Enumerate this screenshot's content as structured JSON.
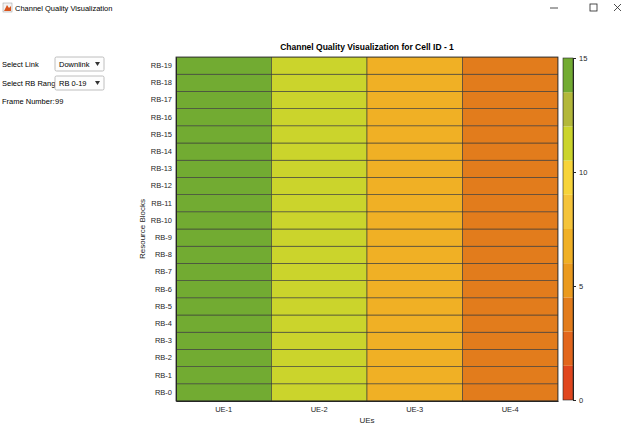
{
  "window": {
    "title": "Channel Quality Visualization"
  },
  "controls": [
    {
      "label": "Select Link",
      "value": "Downlink"
    },
    {
      "label": "Select RB Range",
      "value": "RB 0-19"
    }
  ],
  "frame": {
    "label": "Frame Number:",
    "value": 99
  },
  "chart_data": {
    "type": "heatmap",
    "title": "Channel Quality Visualization for Cell ID - 1",
    "x_label": "UEs",
    "y_label": "Resource Blocks",
    "categories": [
      "UE-1",
      "UE-2",
      "UE-3",
      "UE-4"
    ],
    "y_categories": [
      "RB-0",
      "RB-1",
      "RB-2",
      "RB-3",
      "RB-4",
      "RB-5",
      "RB-6",
      "RB-7",
      "RB-8",
      "RB-9",
      "RB-10",
      "RB-11",
      "RB-12",
      "RB-13",
      "RB-14",
      "RB-15",
      "RB-16",
      "RB-17",
      "RB-18",
      "RB-19"
    ],
    "values": [
      [
        14,
        11,
        7,
        4
      ],
      [
        14,
        11,
        7,
        4
      ],
      [
        14,
        11,
        7,
        4
      ],
      [
        14,
        11,
        7,
        4
      ],
      [
        14,
        11,
        7,
        4
      ],
      [
        14,
        11,
        7,
        4
      ],
      [
        14,
        11,
        7,
        4
      ],
      [
        14,
        11,
        7,
        4
      ],
      [
        14,
        11,
        7,
        4
      ],
      [
        14,
        11,
        7,
        4
      ],
      [
        14,
        11,
        7,
        4
      ],
      [
        14,
        11,
        7,
        4
      ],
      [
        14,
        11,
        7,
        4
      ],
      [
        14,
        11,
        7,
        4
      ],
      [
        14,
        11,
        7,
        4
      ],
      [
        14,
        11,
        7,
        4
      ],
      [
        14,
        11,
        7,
        4
      ],
      [
        14,
        11,
        7,
        4
      ],
      [
        14,
        11,
        7,
        4
      ],
      [
        14,
        11,
        7,
        4
      ]
    ],
    "colorbar": {
      "range": [
        0,
        15
      ],
      "ticks": [
        0,
        5,
        10,
        15
      ],
      "colors": [
        "#e0461e",
        "#e2661d",
        "#e27c1c",
        "#ea9a1e",
        "#f0b025",
        "#f5c43a",
        "#f7d43a",
        "#cbd42c",
        "#b3b83a",
        "#72ab32"
      ]
    }
  }
}
